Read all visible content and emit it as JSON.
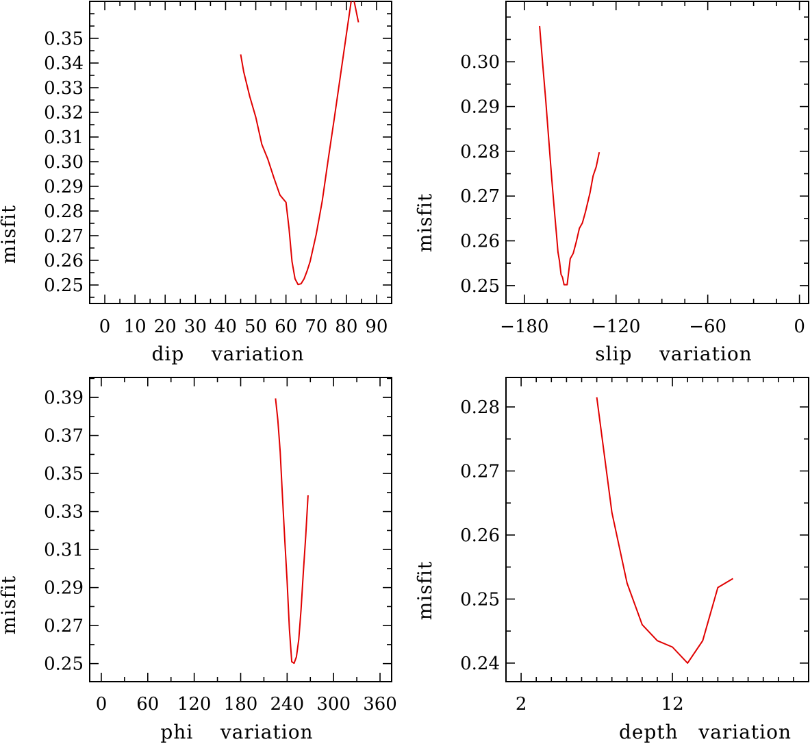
{
  "chart_data": [
    {
      "type": "line",
      "title": "",
      "xlabel": "dip    variation",
      "ylabel": "misfit",
      "xlim": [
        -5,
        95
      ],
      "ylim": [
        0.2425,
        0.365
      ],
      "xticks": [
        0,
        10,
        20,
        30,
        40,
        50,
        60,
        70,
        80,
        90
      ],
      "xminor": 5,
      "yticks": [
        0.25,
        0.26,
        0.27,
        0.28,
        0.29,
        0.3,
        0.31,
        0.32,
        0.33,
        0.34,
        0.35
      ],
      "ytick_labels": [
        "0.25",
        "0.26",
        "0.27",
        "0.28",
        "0.29",
        "0.30",
        "0.31",
        "0.32",
        "0.33",
        "0.34",
        "0.35"
      ],
      "yminor": 0.005,
      "color": "#e00000",
      "series": [
        {
          "name": "misfit",
          "x": [
            45,
            46,
            48,
            50,
            52,
            54,
            56,
            58,
            60,
            61,
            62,
            63,
            64,
            65,
            66,
            67,
            68,
            70,
            72,
            74,
            76,
            78,
            80,
            82,
            84
          ],
          "values": [
            0.3435,
            0.3365,
            0.3265,
            0.318,
            0.307,
            0.301,
            0.2935,
            0.2865,
            0.2835,
            0.273,
            0.2595,
            0.2525,
            0.2502,
            0.2505,
            0.2525,
            0.2557,
            0.2595,
            0.2705,
            0.284,
            0.301,
            0.3175,
            0.3345,
            0.3515,
            0.3685,
            0.3565
          ]
        }
      ]
    },
    {
      "type": "line",
      "title": "",
      "xlabel": "slip    variation",
      "ylabel": "misfit",
      "xlim": [
        -192,
        6
      ],
      "ylim": [
        0.246,
        0.3135
      ],
      "xticks": [
        -180,
        -120,
        -60,
        0
      ],
      "xtick_labels": [
        "−180",
        "−120",
        "−60",
        "0"
      ],
      "xminor": 15,
      "yticks": [
        0.25,
        0.26,
        0.27,
        0.28,
        0.29,
        0.3
      ],
      "ytick_labels": [
        "0.25",
        "0.26",
        "0.27",
        "0.28",
        "0.29",
        "0.30"
      ],
      "yminor": 0.005,
      "color": "#e00000",
      "series": [
        {
          "name": "misfit",
          "x": [
            -170,
            -168,
            -166,
            -164,
            -162,
            -160,
            -159,
            -158,
            -157,
            -156,
            -155,
            -154,
            -152,
            -150,
            -148,
            -146,
            -144,
            -142,
            -140,
            -137,
            -135,
            -133,
            -131
          ],
          "values": [
            0.308,
            0.2995,
            0.2915,
            0.2825,
            0.2735,
            0.2655,
            0.2615,
            0.2575,
            0.2555,
            0.2525,
            0.2518,
            0.2502,
            0.2502,
            0.256,
            0.2572,
            0.2598,
            0.2628,
            0.264,
            0.2665,
            0.2708,
            0.2745,
            0.2765,
            0.2798
          ]
        }
      ]
    },
    {
      "type": "line",
      "title": "",
      "xlabel": "phi    variation",
      "ylabel": "misfit",
      "xlim": [
        -15,
        375
      ],
      "ylim": [
        0.2405,
        0.4005
      ],
      "xticks": [
        0,
        60,
        120,
        180,
        240,
        300,
        360
      ],
      "xminor": 30,
      "yticks": [
        0.25,
        0.27,
        0.29,
        0.31,
        0.33,
        0.35,
        0.37,
        0.39
      ],
      "ytick_labels": [
        "0.25",
        "0.27",
        "0.29",
        "0.31",
        "0.33",
        "0.35",
        "0.37",
        "0.39"
      ],
      "yminor": 0.01,
      "color": "#e00000",
      "series": [
        {
          "name": "misfit",
          "x": [
            225,
            228,
            231,
            234,
            237,
            240,
            243,
            246,
            249,
            252,
            255,
            258,
            261,
            264,
            267
          ],
          "values": [
            0.3895,
            0.378,
            0.3615,
            0.3375,
            0.3145,
            0.2935,
            0.268,
            0.251,
            0.2502,
            0.2535,
            0.2625,
            0.2785,
            0.2985,
            0.317,
            0.3385
          ]
        }
      ]
    },
    {
      "type": "line",
      "title": "",
      "xlabel": "depth   variation",
      "ylabel": "misfit",
      "xlim": [
        1,
        21
      ],
      "ylim": [
        0.2371,
        0.2846
      ],
      "xticks": [
        2,
        12
      ],
      "xminor": 1,
      "yticks": [
        0.24,
        0.25,
        0.26,
        0.27,
        0.28
      ],
      "ytick_labels": [
        "0.24",
        "0.25",
        "0.26",
        "0.27",
        "0.28"
      ],
      "yminor": 0.005,
      "color": "#e00000",
      "series": [
        {
          "name": "misfit",
          "x": [
            7,
            8,
            9,
            10,
            11,
            12,
            13,
            14,
            15,
            16
          ],
          "values": [
            0.2815,
            0.2635,
            0.2525,
            0.246,
            0.2435,
            0.2425,
            0.24,
            0.2435,
            0.2518,
            0.2532
          ]
        }
      ]
    }
  ]
}
